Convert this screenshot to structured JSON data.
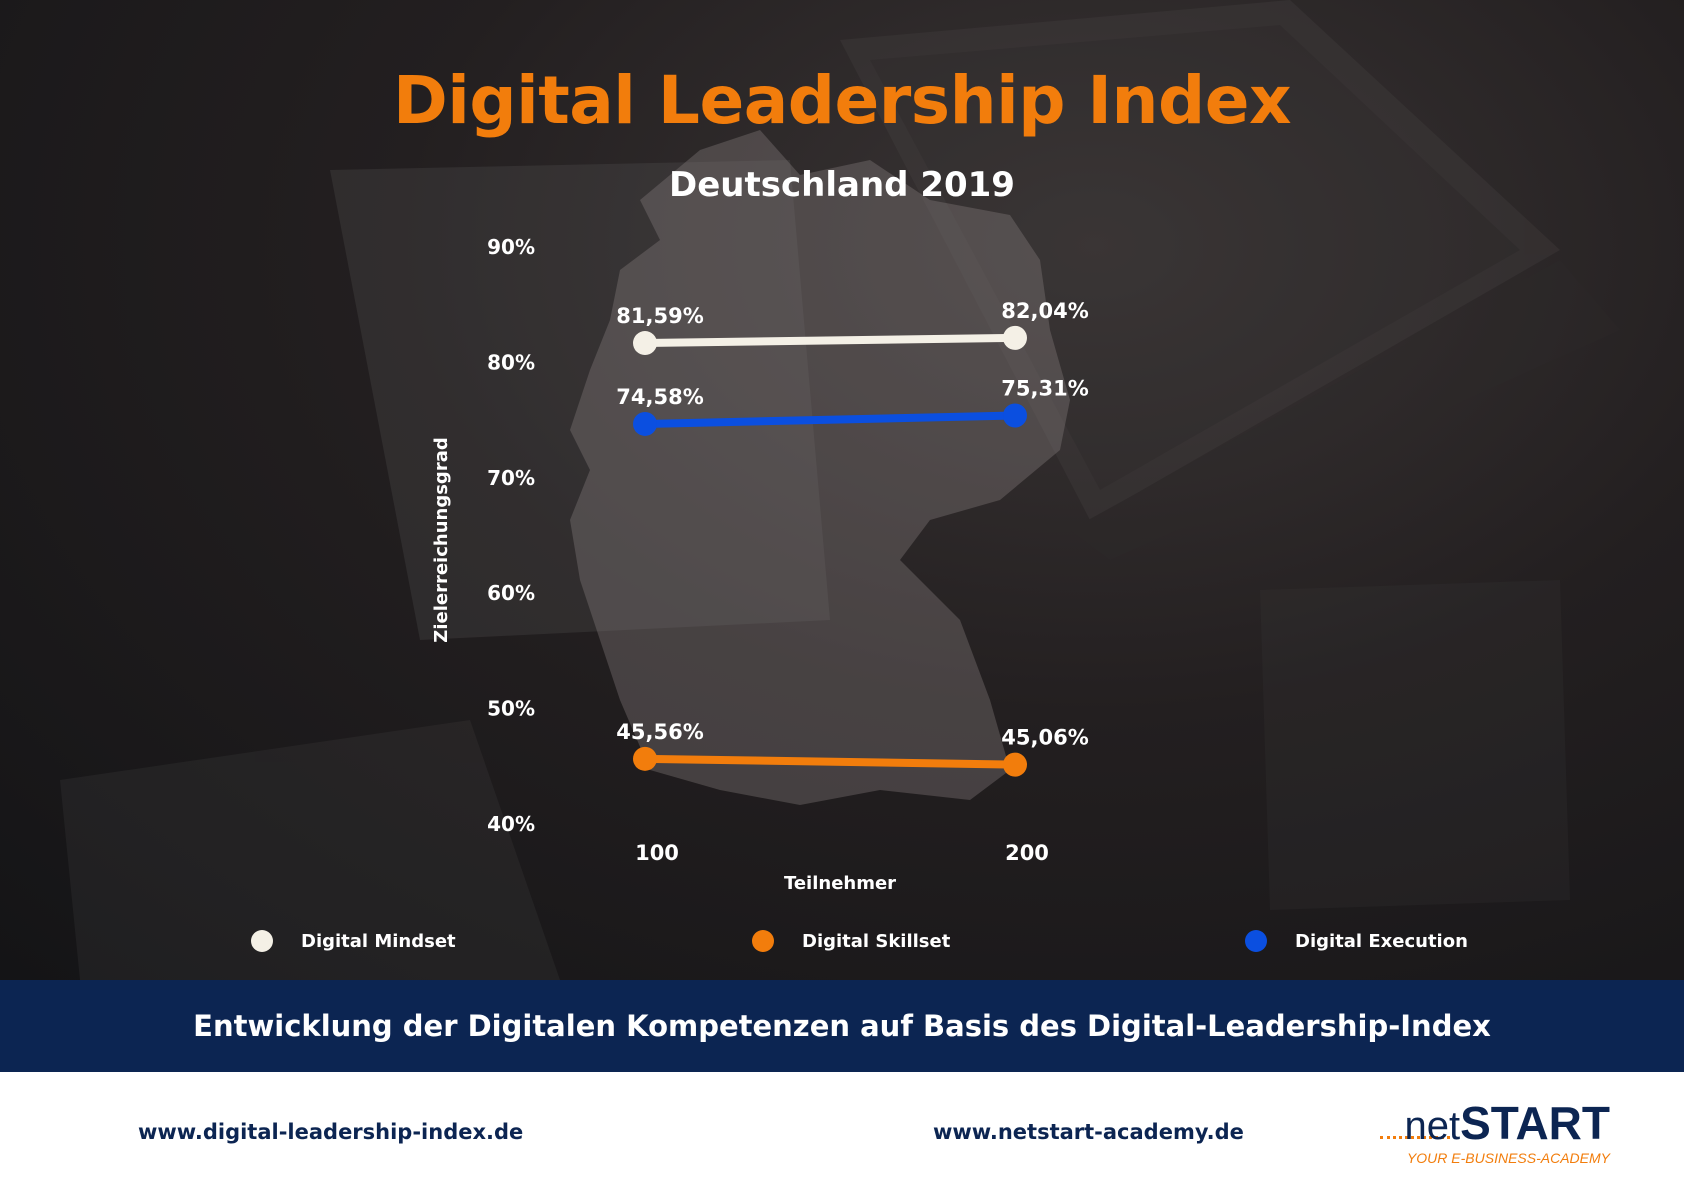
{
  "header": {
    "title": "Digital Leadership Index",
    "subtitle": "Deutschland 2019"
  },
  "colors": {
    "title_orange": "#f27d0c",
    "banner_navy": "#0c2552",
    "mindset": "#f4f0e6",
    "skillset": "#f27d0c",
    "execution": "#0b4fe0"
  },
  "chart_data": {
    "type": "line",
    "title": "Digital Leadership Index",
    "subtitle": "Deutschland 2019",
    "xlabel": "Teilnehmer",
    "ylabel": "Zielerreichungsgrad",
    "x": [
      100,
      200
    ],
    "x_tick_labels": [
      "100",
      "200"
    ],
    "y_ticks": [
      40,
      50,
      60,
      70,
      80,
      90
    ],
    "y_tick_labels": [
      "40%",
      "50%",
      "60%",
      "70%",
      "80%",
      "90%"
    ],
    "ylim": [
      40,
      90
    ],
    "grid": false,
    "legend_position": "bottom",
    "series": [
      {
        "name": "Digital Mindset",
        "values": [
          81.59,
          82.04
        ],
        "labels": [
          "81,59%",
          "82,04%"
        ],
        "color": "#f4f0e6"
      },
      {
        "name": "Digital Execution",
        "values": [
          74.58,
          75.31
        ],
        "labels": [
          "74,58%",
          "75,31%"
        ],
        "color": "#0b4fe0"
      },
      {
        "name": "Digital Skillset",
        "values": [
          45.56,
          45.06
        ],
        "labels": [
          "45,56%",
          "45,06%"
        ],
        "color": "#f27d0c"
      }
    ]
  },
  "legend": {
    "items": [
      {
        "label": "Digital Mindset",
        "color": "#f4f0e6"
      },
      {
        "label": "Digital Skillset",
        "color": "#f27d0c"
      },
      {
        "label": "Digital Execution",
        "color": "#0b4fe0"
      }
    ]
  },
  "banner": {
    "text": "Entwicklung der Digitalen Kompetenzen auf Basis des Digital-Leadership-Index"
  },
  "footer": {
    "link_left": "www.digital-leadership-index.de",
    "link_right": "www.netstart-academy.de",
    "logo_net": "net",
    "logo_start": "START",
    "logo_tagline": "YOUR E-BUSINESS-ACADEMY"
  }
}
